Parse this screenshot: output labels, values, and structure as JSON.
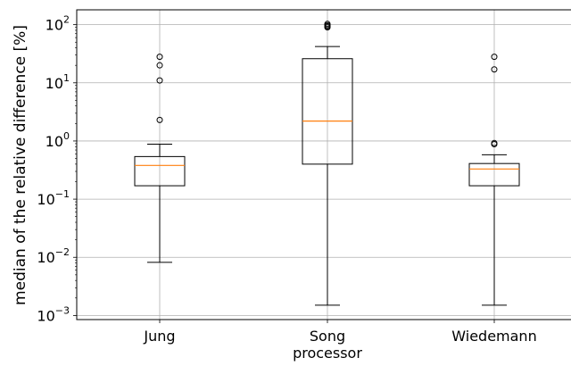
{
  "chart_data": {
    "type": "boxplot",
    "ylabel": "median of the relative difference [%]",
    "yscale": "log",
    "ylim": [
      0.00085,
      180
    ],
    "grid": true,
    "y_ticks": [
      {
        "value": 0.001,
        "base": "10",
        "exp": "−3"
      },
      {
        "value": 0.01,
        "base": "10",
        "exp": "−2"
      },
      {
        "value": 0.1,
        "base": "10",
        "exp": "−1"
      },
      {
        "value": 1,
        "base": "10",
        "exp": "0"
      },
      {
        "value": 10,
        "base": "10",
        "exp": "1"
      },
      {
        "value": 100,
        "base": "10",
        "exp": "2"
      }
    ],
    "categories": [
      {
        "label_lines": [
          "Jung"
        ]
      },
      {
        "label_lines": [
          "Song",
          "processor"
        ]
      },
      {
        "label_lines": [
          "Wiedemann"
        ]
      }
    ],
    "boxes": [
      {
        "whisker_low": 0.0082,
        "q1": 0.17,
        "median": 0.38,
        "q3": 0.54,
        "whisker_high": 0.88,
        "fliers": [
          2.3,
          11,
          20,
          28
        ]
      },
      {
        "whisker_low": 0.0015,
        "q1": 0.4,
        "median": 2.2,
        "q3": 26,
        "whisker_high": 42,
        "fliers": [
          90,
          94,
          98,
          103
        ]
      },
      {
        "whisker_low": 0.0015,
        "q1": 0.17,
        "median": 0.33,
        "q3": 0.41,
        "whisker_high": 0.58,
        "fliers": [
          0.88,
          0.92,
          17,
          28
        ]
      }
    ],
    "colors": {
      "median": "#ff7f0e",
      "box": "#000000",
      "grid": "#b0b0b0"
    }
  }
}
